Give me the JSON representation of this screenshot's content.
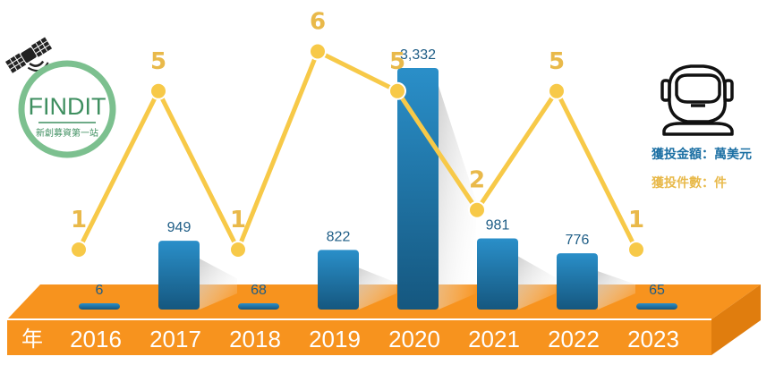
{
  "chart_data": {
    "type": "bar",
    "x_prefix": "年",
    "categories": [
      "2016",
      "2017",
      "2018",
      "2019",
      "2020",
      "2021",
      "2022",
      "2023"
    ],
    "series": [
      {
        "name": "獲投金額：萬美元",
        "type": "bar",
        "color": "#1b6fa3",
        "values": [
          6,
          949,
          68,
          822,
          3332,
          981,
          776,
          65
        ],
        "value_labels": [
          "6",
          "949",
          "68",
          "822",
          "3,332",
          "981",
          "776",
          "65"
        ]
      },
      {
        "name": "獲投件數：件",
        "type": "line",
        "color": "#f7c948",
        "values": [
          1,
          5,
          1,
          6,
          5,
          2,
          5,
          1
        ],
        "value_labels": [
          "1",
          "5",
          "1",
          "6",
          "5",
          "2",
          "5",
          "1"
        ]
      }
    ],
    "legend": "right",
    "grid": false
  },
  "logo": {
    "title": "FINDIT",
    "subtitle": "新創募資第一站"
  },
  "icons": {
    "satellite": "satellite-icon",
    "astronaut": "astronaut-helmet-icon"
  },
  "colors": {
    "platform": "#f7931e",
    "platform_side": "#e07d0e",
    "bar_light": "#2a8fc9",
    "bar_dark": "#15577f",
    "line": "#f7c948",
    "count_label": "#e9b94a"
  }
}
